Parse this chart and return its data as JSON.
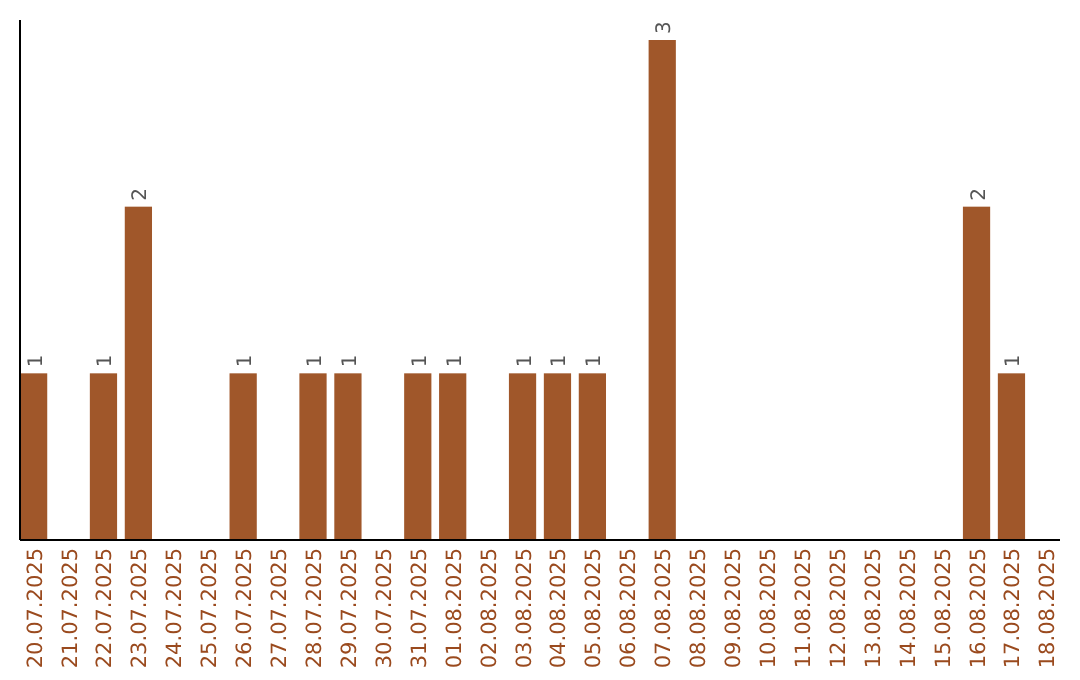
{
  "chart_data": {
    "type": "bar",
    "categories": [
      "20.07.2025",
      "21.07.2025",
      "22.07.2025",
      "23.07.2025",
      "24.07.2025",
      "25.07.2025",
      "26.07.2025",
      "27.07.2025",
      "28.07.2025",
      "29.07.2025",
      "30.07.2025",
      "31.07.2025",
      "01.08.2025",
      "02.08.2025",
      "03.08.2025",
      "04.08.2025",
      "05.08.2025",
      "06.08.2025",
      "07.08.2025",
      "08.08.2025",
      "09.08.2025",
      "10.08.2025",
      "11.08.2025",
      "12.08.2025",
      "13.08.2025",
      "14.08.2025",
      "15.08.2025",
      "16.08.2025",
      "17.08.2025",
      "18.08.2025"
    ],
    "values": [
      1,
      0,
      1,
      2,
      0,
      0,
      1,
      0,
      1,
      1,
      0,
      1,
      1,
      0,
      1,
      1,
      1,
      0,
      3,
      0,
      0,
      0,
      0,
      0,
      0,
      0,
      0,
      2,
      1,
      0
    ],
    "value_labels": [
      "1",
      null,
      "1",
      "2",
      null,
      null,
      "1",
      null,
      "1",
      "1",
      null,
      "1",
      "1",
      null,
      "1",
      "1",
      "1",
      null,
      "3",
      null,
      null,
      null,
      null,
      null,
      null,
      null,
      null,
      "2",
      "1",
      null
    ],
    "color": "#a0572a",
    "tick_labels": "x"
  }
}
